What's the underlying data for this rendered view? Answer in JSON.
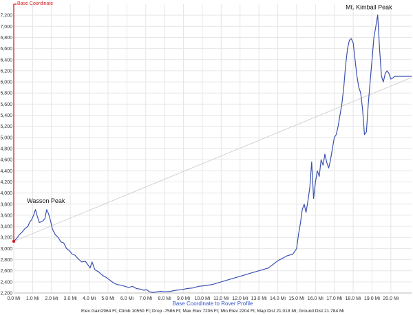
{
  "chart_data": {
    "type": "line",
    "xlabel": "Base Coordinate to Rover Profile",
    "ylabel": "",
    "xlim": [
      0,
      21.1
    ],
    "ylim": [
      2200,
      7400
    ],
    "x_ticks": [
      0,
      1,
      2,
      3,
      4,
      5,
      6,
      7,
      8,
      9,
      10,
      11,
      12,
      13,
      14,
      15,
      16,
      17,
      18,
      19,
      20
    ],
    "y_ticks": [
      2200,
      2400,
      2600,
      2800,
      3000,
      3200,
      3400,
      3600,
      3800,
      4000,
      4200,
      4400,
      4600,
      4800,
      5000,
      5200,
      5400,
      5600,
      5800,
      6000,
      6200,
      6400,
      6600,
      6800,
      7000,
      7200
    ],
    "x_tick_labels": [
      "0.0 Mi",
      "1.0 Mi",
      "2.0 Mi",
      "3.0 Mi",
      "4.0 Mi",
      "5.0 Mi",
      "6.0 Mi",
      "7.0 Mi",
      "8.0 Mi",
      "9.0 Mi",
      "10.0 Mi",
      "11.0 Mi",
      "12.0 Mi",
      "13.0 Mi",
      "14.0 Mi",
      "15.0 Mi",
      "16.0 Mi",
      "17.0 Mi",
      "18.0 Mi",
      "19.0 Mi",
      "20.0 Mi"
    ],
    "y_tick_labels": [
      "2,200",
      "2,400",
      "2,600",
      "2,800",
      "3,000",
      "3,200",
      "3,400",
      "3,600",
      "3,800",
      "4,000",
      "4,200",
      "4,400",
      "4,600",
      "4,800",
      "5,000",
      "5,200",
      "5,400",
      "5,600",
      "5,800",
      "6,000",
      "6,200",
      "6,400",
      "6,600",
      "6,800",
      "7,000",
      "7,200"
    ],
    "grid": true,
    "series": [
      {
        "color": "#3a50b0",
        "x": [
          0,
          0.15,
          0.3,
          0.45,
          0.6,
          0.75,
          0.85,
          0.95,
          1.05,
          1.15,
          1.25,
          1.35,
          1.45,
          1.55,
          1.65,
          1.75,
          1.85,
          1.95,
          2.05,
          2.2,
          2.35,
          2.5,
          2.65,
          2.8,
          2.95,
          3.1,
          3.25,
          3.4,
          3.6,
          3.8,
          3.95,
          4.05,
          4.15,
          4.3,
          4.5,
          4.7,
          4.9,
          5.1,
          5.3,
          5.5,
          5.7,
          5.9,
          6.1,
          6.3,
          6.5,
          6.7,
          6.9,
          7.05,
          7.2,
          7.4,
          7.6,
          7.8,
          8.0,
          8.3,
          8.6,
          8.9,
          9.2,
          9.5,
          9.8,
          10.1,
          10.5,
          11.0,
          11.5,
          12.0,
          12.5,
          13.0,
          13.5,
          14.0,
          14.5,
          14.8,
          15.0,
          15.1,
          15.2,
          15.3,
          15.4,
          15.5,
          15.6,
          15.7,
          15.8,
          15.9,
          16.0,
          16.1,
          16.2,
          16.3,
          16.4,
          16.5,
          16.6,
          16.7,
          16.8,
          16.9,
          17.0,
          17.1,
          17.2,
          17.3,
          17.4,
          17.5,
          17.6,
          17.7,
          17.8,
          17.9,
          18.0,
          18.1,
          18.2,
          18.3,
          18.4,
          18.5,
          18.6,
          18.7,
          18.8,
          18.9,
          19.0,
          19.1,
          19.2,
          19.3,
          19.4,
          19.5,
          19.6,
          19.7,
          19.8,
          19.9,
          20.0,
          20.1,
          20.2,
          20.3,
          20.4,
          20.5,
          20.6,
          20.7,
          20.8,
          20.9,
          21.0,
          21.1
        ],
        "y": [
          3130,
          3180,
          3250,
          3300,
          3360,
          3400,
          3480,
          3520,
          3600,
          3700,
          3580,
          3470,
          3480,
          3500,
          3540,
          3700,
          3620,
          3500,
          3350,
          3250,
          3200,
          3120,
          3100,
          3000,
          2960,
          2900,
          2880,
          2820,
          2760,
          2770,
          2700,
          2650,
          2760,
          2620,
          2580,
          2520,
          2480,
          2430,
          2380,
          2350,
          2340,
          2320,
          2300,
          2320,
          2280,
          2270,
          2250,
          2260,
          2220,
          2210,
          2220,
          2230,
          2220,
          2230,
          2250,
          2260,
          2280,
          2290,
          2320,
          2330,
          2350,
          2400,
          2450,
          2500,
          2550,
          2600,
          2650,
          2780,
          2870,
          2900,
          3000,
          3250,
          3450,
          3700,
          3800,
          3650,
          3850,
          4100,
          4560,
          3900,
          4200,
          4400,
          4300,
          4600,
          4500,
          4700,
          4550,
          4450,
          4600,
          4800,
          5000,
          5050,
          5200,
          5400,
          5600,
          5900,
          6300,
          6600,
          6750,
          6780,
          6700,
          6400,
          6100,
          5900,
          5800,
          5500,
          5050,
          5100,
          5600,
          6000,
          6400,
          6800,
          7000,
          7206,
          6600,
          6100,
          6000,
          6150,
          6200,
          6150,
          6050,
          6070,
          6100,
          6100,
          6100,
          6100,
          6100,
          6100,
          6100,
          6100,
          6100,
          6100
        ]
      },
      {
        "color": "#c8c8c8",
        "x": [
          0,
          21.1
        ],
        "y": [
          3130,
          6080
        ]
      }
    ],
    "annotations": [
      {
        "text": "Wasson Peak",
        "x": 1.75,
        "y": 3700
      },
      {
        "text": "Mt. Kimball Peak",
        "x": 20.0,
        "y": 7206
      },
      {
        "text": "Base Coordinate",
        "x": 0,
        "y": 7400
      }
    ],
    "stats_text": "Elev Gain2964 Ft; Climb 10550 Ft; Drop -7586 Ft; Max Elev 7206 Ft; Min Elev 2204 Ft; Map Dist 21.018 Mi; Ground Dist 21.784 Mi"
  },
  "colors": {
    "profile_line": "#3a50b0",
    "base_marker": "#d02020",
    "trend_line": "#c8c8c8",
    "grid": "#e6e6e6",
    "axis_title": "#3355cc"
  }
}
